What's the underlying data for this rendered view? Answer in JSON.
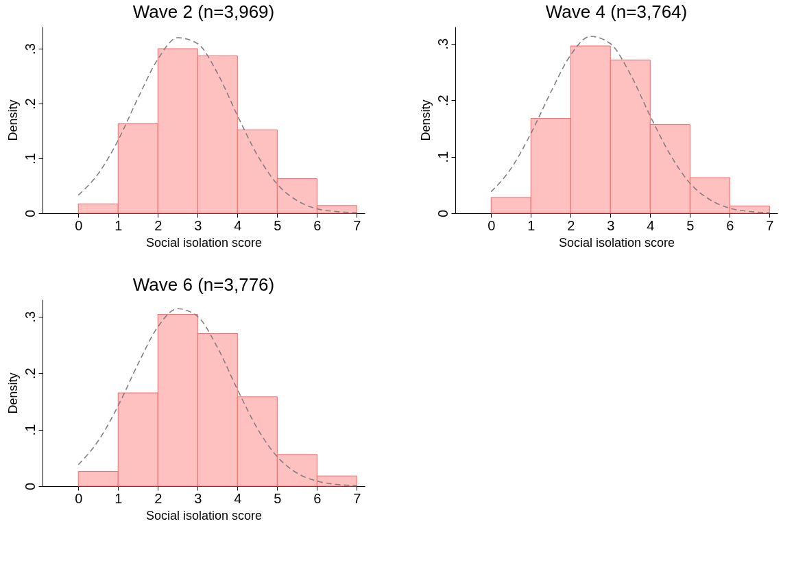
{
  "chart_data": [
    {
      "type": "histogram",
      "title": "Wave 2 (n=3,969)",
      "xlabel": "Social isolation score",
      "ylabel": "Density",
      "bins": [
        0,
        1,
        2,
        3,
        4,
        5,
        6,
        7
      ],
      "xlim": [
        -0.9,
        7.2
      ],
      "xticks": [
        0,
        1,
        2,
        3,
        4,
        5,
        6,
        7
      ],
      "ylim": [
        0,
        0.34
      ],
      "yticks": [
        {
          "value": 0,
          "label": "0"
        },
        {
          "value": 0.1,
          "label": ".1"
        },
        {
          "value": 0.2,
          "label": ".2"
        },
        {
          "value": 0.3,
          "label": ".3"
        }
      ],
      "series": [
        {
          "color": "#ffc0c0",
          "values": [
            0.017,
            0.163,
            0.3,
            0.287,
            0.152,
            0.063,
            0.014
          ]
        },
        {
          "type": "line",
          "color": "#808080",
          "line_style": "dashed",
          "x": [
            0,
            0.5,
            1,
            1.5,
            2,
            2.5,
            3,
            3.5,
            4,
            4.5,
            5,
            5.5,
            6,
            6.5,
            7
          ],
          "values": [
            0.033,
            0.072,
            0.133,
            0.21,
            0.281,
            0.32,
            0.309,
            0.255,
            0.178,
            0.106,
            0.053,
            0.023,
            0.008,
            0.003,
            0.001
          ]
        }
      ]
    },
    {
      "type": "histogram",
      "title": "Wave 4 (n=3,764)",
      "xlabel": "Social isolation score",
      "ylabel": "Density",
      "bins": [
        0,
        1,
        2,
        3,
        4,
        5,
        6,
        7
      ],
      "xlim": [
        -0.9,
        7.2
      ],
      "xticks": [
        0,
        1,
        2,
        3,
        4,
        5,
        6,
        7
      ],
      "ylim": [
        0,
        0.33
      ],
      "yticks": [
        {
          "value": 0,
          "label": "0"
        },
        {
          "value": 0.1,
          "label": ".1"
        },
        {
          "value": 0.2,
          "label": ".2"
        },
        {
          "value": 0.3,
          "label": ".3"
        }
      ],
      "series": [
        {
          "color": "#ffc0c0",
          "values": [
            0.028,
            0.168,
            0.296,
            0.271,
            0.157,
            0.063,
            0.013
          ]
        },
        {
          "type": "line",
          "color": "#808080",
          "line_style": "dashed",
          "x": [
            0,
            0.5,
            1,
            1.5,
            2,
            2.5,
            3,
            3.5,
            4,
            4.5,
            5,
            5.5,
            6,
            6.5,
            7
          ],
          "values": [
            0.038,
            0.079,
            0.141,
            0.214,
            0.28,
            0.313,
            0.3,
            0.246,
            0.172,
            0.104,
            0.053,
            0.024,
            0.009,
            0.003,
            0.001
          ]
        }
      ]
    },
    {
      "type": "histogram",
      "title": "Wave 6 (n=3,776)",
      "xlabel": "Social isolation score",
      "ylabel": "Density",
      "bins": [
        0,
        1,
        2,
        3,
        4,
        5,
        6,
        7
      ],
      "xlim": [
        -0.9,
        7.2
      ],
      "xticks": [
        0,
        1,
        2,
        3,
        4,
        5,
        6,
        7
      ],
      "ylim": [
        0,
        0.33
      ],
      "yticks": [
        {
          "value": 0,
          "label": "0"
        },
        {
          "value": 0.1,
          "label": ".1"
        },
        {
          "value": 0.2,
          "label": ".2"
        },
        {
          "value": 0.3,
          "label": ".3"
        }
      ],
      "series": [
        {
          "color": "#ffc0c0",
          "values": [
            0.026,
            0.165,
            0.304,
            0.27,
            0.158,
            0.056,
            0.018
          ]
        },
        {
          "type": "line",
          "color": "#808080",
          "line_style": "dashed",
          "x": [
            0,
            0.5,
            1,
            1.5,
            2,
            2.5,
            3,
            3.5,
            4,
            4.5,
            5,
            5.5,
            6,
            6.5,
            7
          ],
          "values": [
            0.038,
            0.08,
            0.142,
            0.216,
            0.282,
            0.314,
            0.3,
            0.245,
            0.171,
            0.102,
            0.052,
            0.023,
            0.009,
            0.003,
            0.001
          ]
        }
      ]
    }
  ]
}
